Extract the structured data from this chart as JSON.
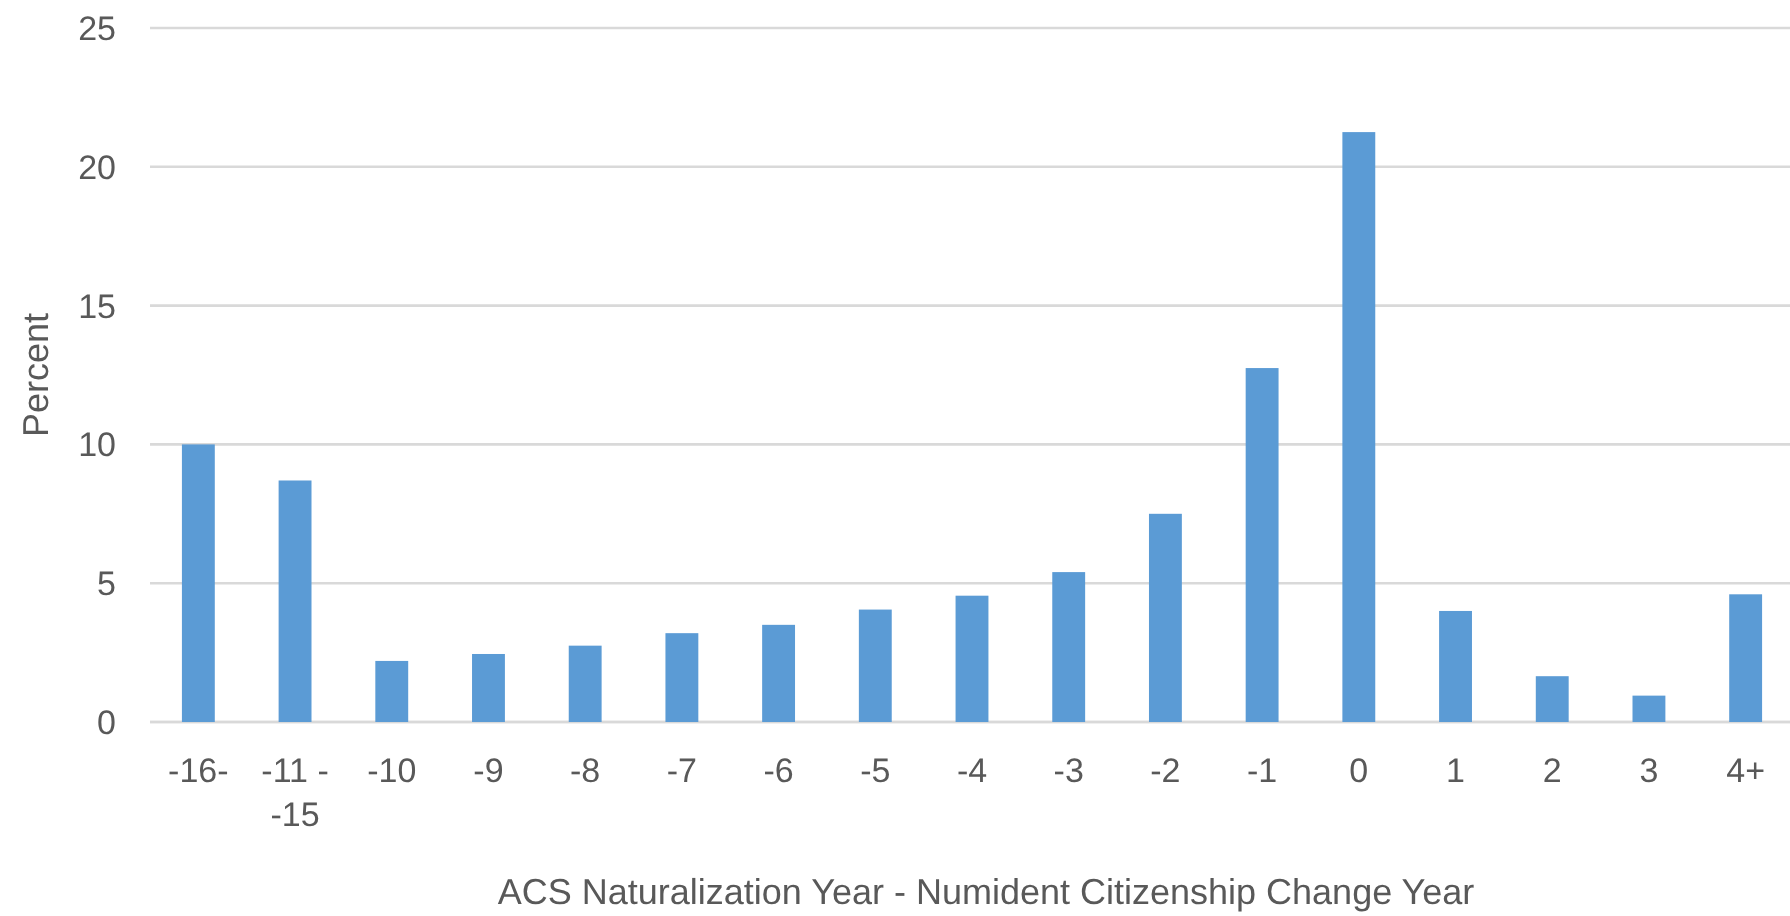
{
  "chart_data": {
    "type": "bar",
    "xlabel": "ACS Naturalization Year - Numident Citizenship Change Year",
    "ylabel": "Percent",
    "categories": [
      "-16-",
      "-11 - -15",
      "-10",
      "-9",
      "-8",
      "-7",
      "-6",
      "-5",
      "-4",
      "-3",
      "-2",
      "-1",
      "0",
      "1",
      "2",
      "3",
      "4+"
    ],
    "values": [
      10.0,
      8.7,
      2.2,
      2.45,
      2.75,
      3.2,
      3.5,
      4.05,
      4.55,
      5.4,
      7.5,
      12.75,
      21.25,
      4.0,
      1.65,
      0.95,
      4.6
    ],
    "color": "#5b9bd5",
    "ylim": [
      0,
      25
    ],
    "yticks": [
      0,
      5,
      10,
      15,
      20,
      25
    ],
    "grid": "y"
  }
}
